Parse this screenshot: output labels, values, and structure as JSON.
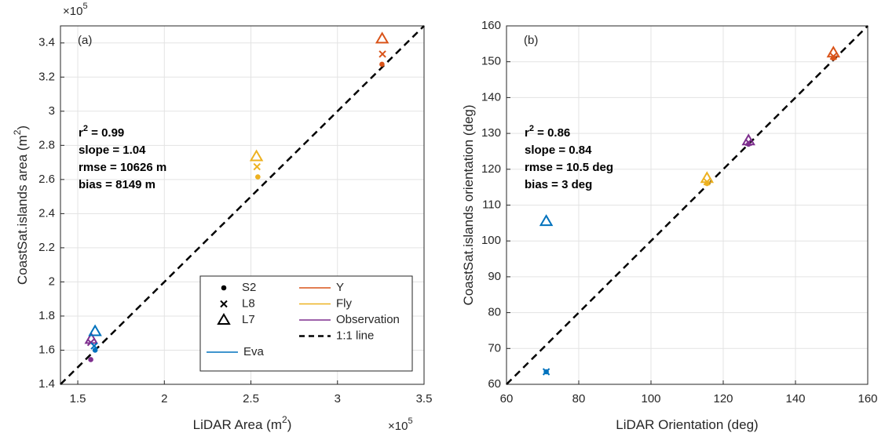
{
  "chart_data": [
    {
      "type": "scatter",
      "panel_label": "(a)",
      "xlabel": {
        "text": "LiDAR Area (m",
        "sup": "2",
        "tail": ")"
      },
      "ylabel": {
        "text": "CoastSat.islands area (m",
        "sup": "2",
        "tail": ")"
      },
      "x_exponent": {
        "base": "×10",
        "power": "5"
      },
      "y_exponent": {
        "base": "×10",
        "power": "5"
      },
      "xlim": [
        140000,
        350000
      ],
      "ylim": [
        140000,
        350000
      ],
      "xticks": [
        {
          "value": 150000,
          "label": "1.5"
        },
        {
          "value": 200000,
          "label": "2"
        },
        {
          "value": 250000,
          "label": "2.5"
        },
        {
          "value": 300000,
          "label": "3"
        },
        {
          "value": 350000,
          "label": "3.5"
        }
      ],
      "yticks": [
        {
          "value": 140000,
          "label": "1.4"
        },
        {
          "value": 160000,
          "label": "1.6"
        },
        {
          "value": 180000,
          "label": "1.8"
        },
        {
          "value": 200000,
          "label": "2"
        },
        {
          "value": 220000,
          "label": "2.2"
        },
        {
          "value": 240000,
          "label": "2.4"
        },
        {
          "value": 260000,
          "label": "2.6"
        },
        {
          "value": 280000,
          "label": "2.8"
        },
        {
          "value": 300000,
          "label": "3"
        },
        {
          "value": 320000,
          "label": "3.2"
        },
        {
          "value": 340000,
          "label": "3.4"
        }
      ],
      "grid": true,
      "legend": true,
      "marker_names": [
        "S2",
        "L8",
        "L7"
      ],
      "symbols": [
        "dot",
        "cross",
        "triangle"
      ],
      "series": [
        {
          "name": "Y",
          "color": "#D95319",
          "x": [
            325700,
            326000,
            325800
          ],
          "values": [
            327500,
            333500,
            342500
          ]
        },
        {
          "name": "Fly",
          "color": "#EDB120",
          "x": [
            254000,
            253500,
            253200
          ],
          "values": [
            261500,
            267500,
            273500
          ]
        },
        {
          "name": "Observation",
          "color": "#7E2F8E",
          "x": [
            157500,
            157500,
            157800
          ],
          "values": [
            154500,
            164500,
            166500
          ]
        },
        {
          "name": "Eva",
          "color": "#0072BD",
          "x": [
            160000,
            159500,
            160000
          ],
          "values": [
            160000,
            162500,
            171000
          ]
        }
      ],
      "identity_line": {
        "name": "1:1 line"
      },
      "stats": {
        "r": "r",
        "sup": "2",
        "r_tail": " = 0.99",
        "lines": [
          "slope = 1.04",
          "rmse = 10626 m",
          "bias = 8149 m"
        ]
      }
    },
    {
      "type": "scatter",
      "panel_label": "(b)",
      "xlabel": {
        "text": "LiDAR Orientation (deg)"
      },
      "ylabel": {
        "text": "CoastSat.islands orientation (deg)"
      },
      "xlim": [
        60,
        160
      ],
      "ylim": [
        60,
        160
      ],
      "xticks": [
        60,
        80,
        100,
        120,
        140,
        160
      ],
      "yticks": [
        60,
        70,
        80,
        90,
        100,
        110,
        120,
        130,
        140,
        150,
        160
      ],
      "grid": true,
      "legend": false,
      "symbols": [
        "dot",
        "cross",
        "triangle"
      ],
      "series": [
        {
          "color": "#D95319",
          "x": [
            150.5,
            150.5,
            150.5
          ],
          "values": [
            151,
            151.5,
            152.5
          ]
        },
        {
          "color": "#EDB120",
          "x": [
            115.5,
            115.5,
            115.5
          ],
          "values": [
            116,
            116.5,
            117.5
          ]
        },
        {
          "color": "#7E2F8E",
          "x": [
            127,
            127,
            127
          ],
          "values": [
            127,
            127.5,
            128
          ]
        },
        {
          "color": "#0072BD",
          "x": [
            71,
            71,
            71
          ],
          "values": [
            63.5,
            63.5,
            105.5
          ]
        }
      ],
      "identity_line": {},
      "stats": {
        "r": "r",
        "sup": "2",
        "r_tail": " = 0.86",
        "lines": [
          "slope = 0.84",
          "rmse = 10.5 deg",
          "bias = 3 deg"
        ]
      }
    }
  ]
}
